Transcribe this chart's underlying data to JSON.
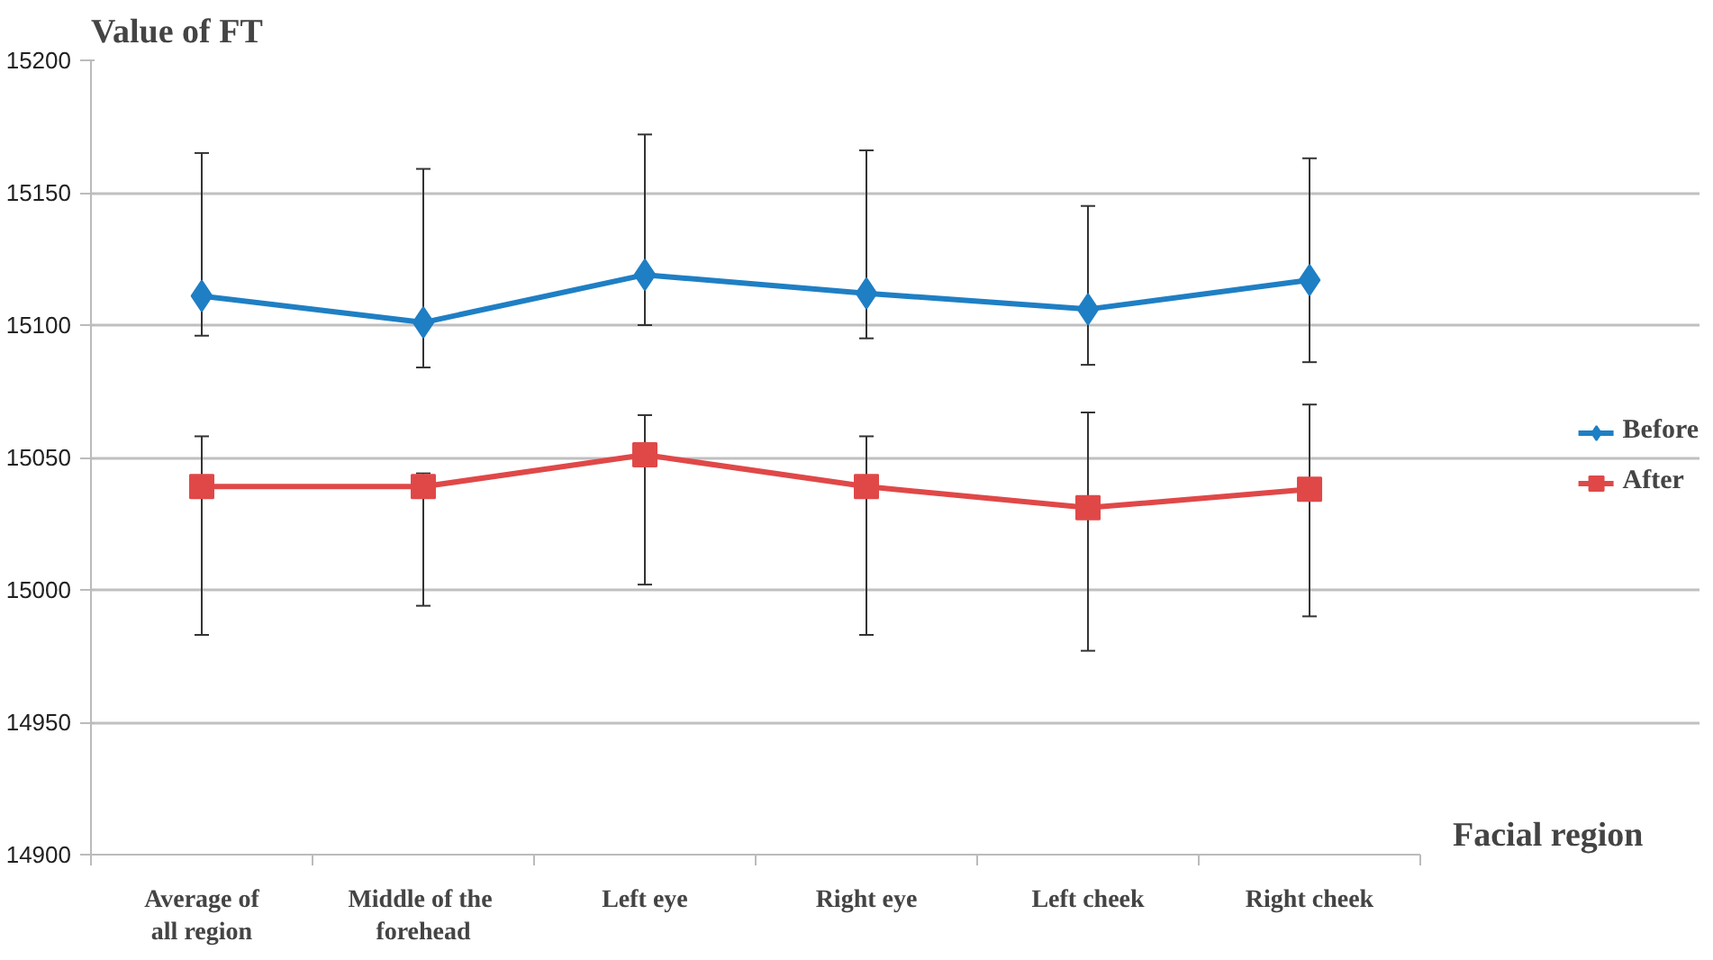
{
  "chart_data": {
    "type": "line",
    "ylabel": "Value of FT",
    "xlabel": "Facial region",
    "categories": [
      "Average of\nall region",
      "Middle  of the\nforehead",
      "Left eye",
      "Right eye",
      "Left cheek",
      "Right cheek"
    ],
    "series": [
      {
        "name": "Before",
        "color": "#1f7fc4",
        "marker": "diamond",
        "values": [
          15111,
          15101,
          15119,
          15112,
          15106,
          15117
        ],
        "errors": [
          [
            15096,
            15165
          ],
          [
            15084,
            15159
          ],
          [
            15100,
            15172
          ],
          [
            15095,
            15166
          ],
          [
            15085,
            15145
          ],
          [
            15086,
            15163
          ]
        ]
      },
      {
        "name": "After",
        "color": "#e04848",
        "marker": "square",
        "values": [
          15039,
          15039,
          15051,
          15039,
          15031,
          15038
        ],
        "errors": [
          [
            14983,
            15058
          ],
          [
            14994,
            15044
          ],
          [
            15002,
            15066
          ],
          [
            14983,
            15058
          ],
          [
            14977,
            15067
          ],
          [
            14990,
            15070
          ]
        ]
      }
    ],
    "ylim": [
      14900,
      15200
    ],
    "yticks": [
      14900,
      14950,
      15000,
      15050,
      15100,
      15150,
      15200
    ],
    "grid": "y",
    "legend": "right"
  }
}
